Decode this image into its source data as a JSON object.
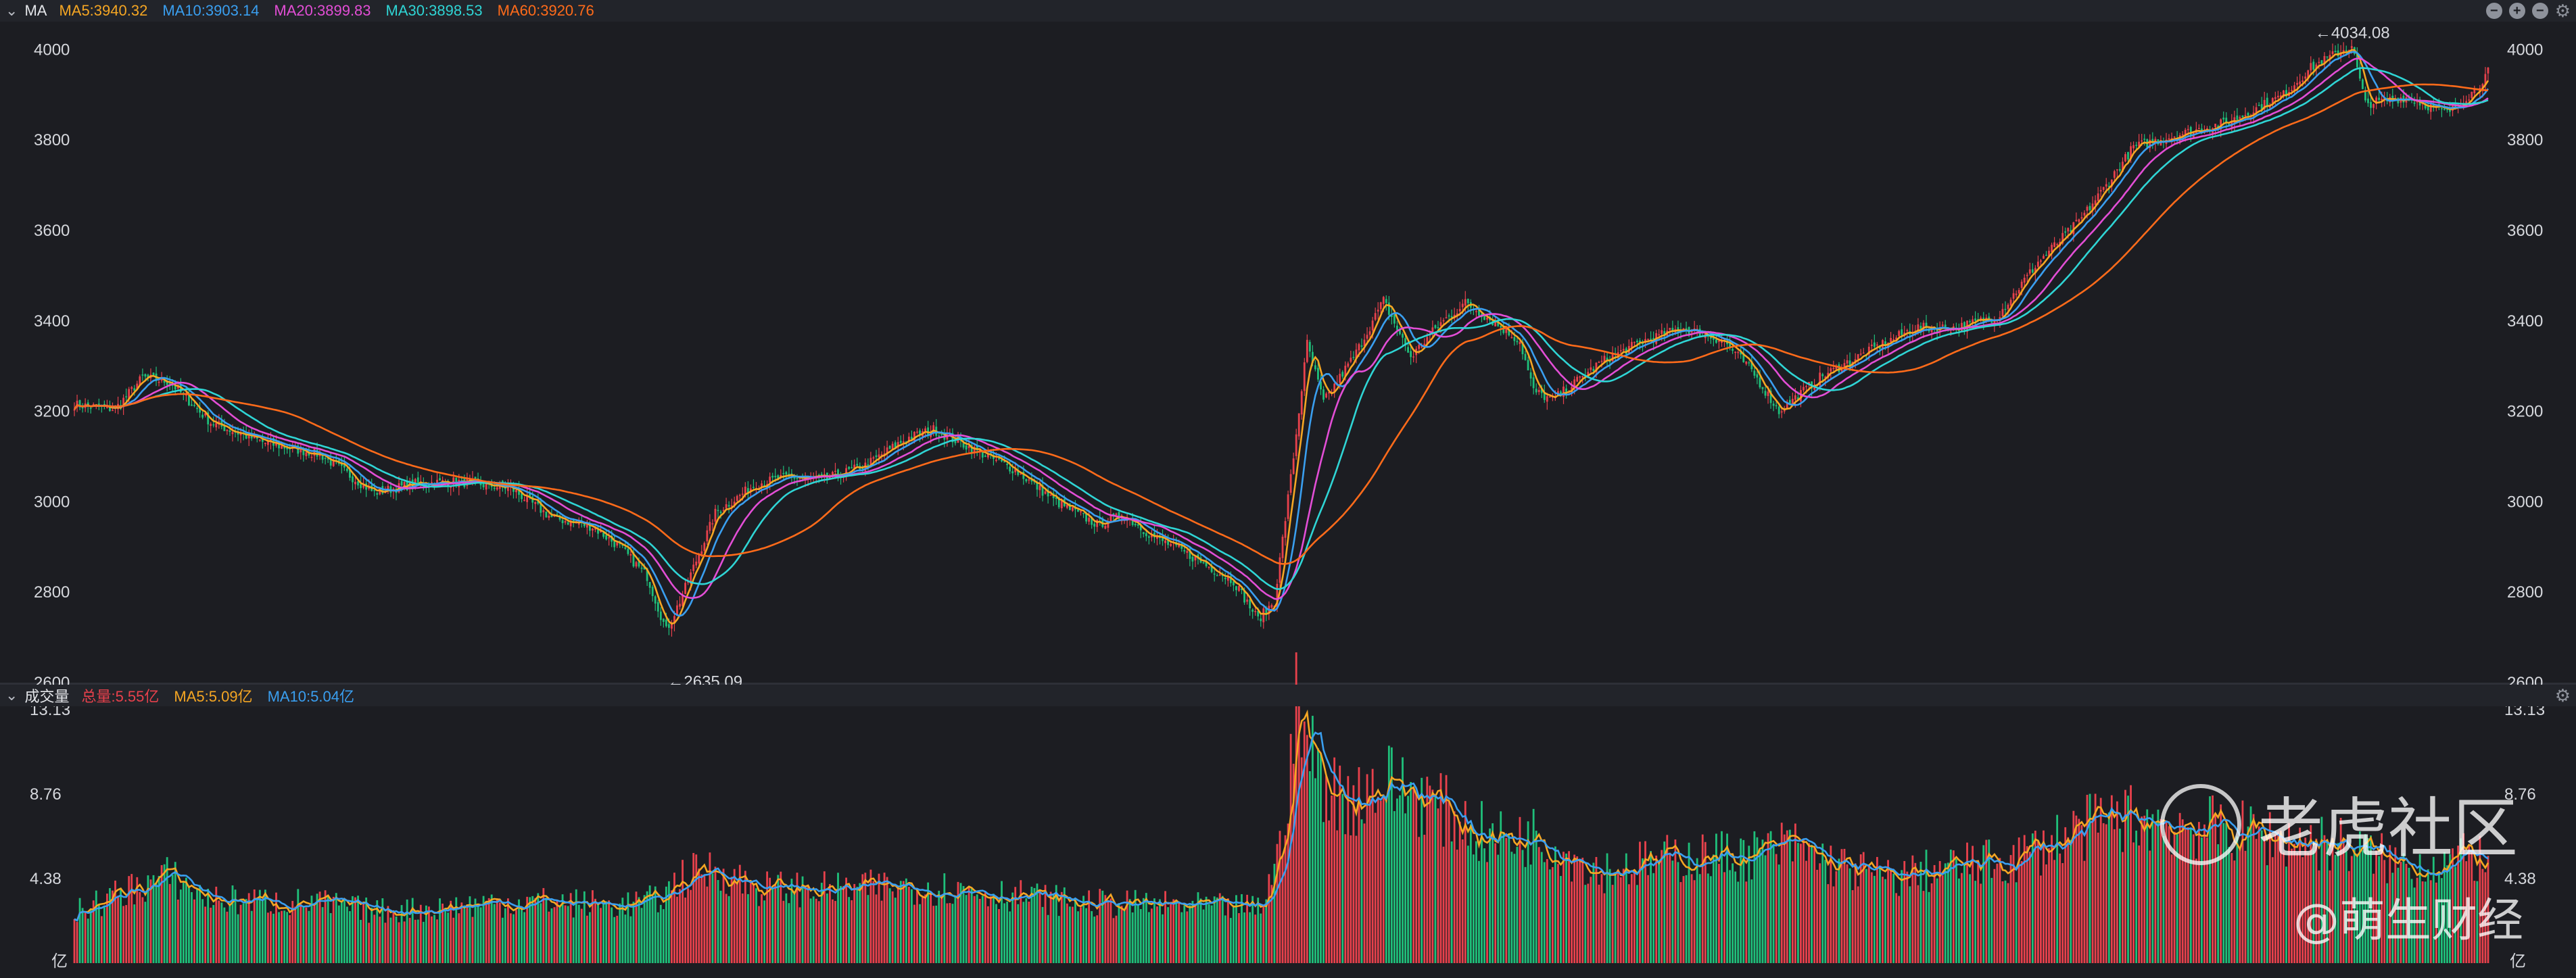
{
  "colors": {
    "up": "#e8414c",
    "down": "#1fbf7a",
    "ma5": "#f5a623",
    "ma10": "#3a9ff0",
    "ma20": "#e34ed6",
    "ma30": "#2fd5d5",
    "ma60": "#ff6b1a",
    "total": "#e8414c",
    "text": "#d6d8dd",
    "grid": "#2a2c33"
  },
  "price_panel": {
    "title": "MA",
    "legend": [
      {
        "label": "MA5:3940.32",
        "color": "#f5a623"
      },
      {
        "label": "MA10:3903.14",
        "color": "#3a9ff0"
      },
      {
        "label": "MA20:3899.83",
        "color": "#e34ed6"
      },
      {
        "label": "MA30:3898.53",
        "color": "#2fd5d5"
      },
      {
        "label": "MA60:3920.76",
        "color": "#ff6b1a"
      }
    ],
    "y_ticks": [
      "4000",
      "3800",
      "3600",
      "3400",
      "3200",
      "3000",
      "2800",
      "2600"
    ],
    "annotations": {
      "high": "←4034.08",
      "low": "←2635.09"
    }
  },
  "volume_panel": {
    "title": "成交量",
    "legend": [
      {
        "label": "总量:5.55亿",
        "color": "#e8414c"
      },
      {
        "label": "MA5:5.09亿",
        "color": "#f5a623"
      },
      {
        "label": "MA10:5.04亿",
        "color": "#3a9ff0"
      }
    ],
    "y_ticks": [
      "13.13",
      "8.76",
      "4.38"
    ],
    "unit": "亿"
  },
  "watermark": {
    "brand": "老虎社区",
    "author": "@萌生财经"
  },
  "chart_data": [
    {
      "type": "candlestick",
      "title": "MA",
      "ylim": [
        2600,
        4050
      ],
      "y_ticks": [
        2600,
        2800,
        3000,
        3200,
        3400,
        3600,
        3800,
        4000
      ],
      "high": 4034.08,
      "low": 2635.09,
      "series": [
        {
          "name": "MA5",
          "last": 3940.32
        },
        {
          "name": "MA10",
          "last": 3903.14
        },
        {
          "name": "MA20",
          "last": 3899.83
        },
        {
          "name": "MA30",
          "last": 3898.53
        },
        {
          "name": "MA60",
          "last": 3920.76
        }
      ],
      "close_path": [
        [
          0,
          3215
        ],
        [
          15,
          3205
        ],
        [
          25,
          3275
        ],
        [
          35,
          3265
        ],
        [
          50,
          3175
        ],
        [
          70,
          3130
        ],
        [
          90,
          3105
        ],
        [
          110,
          3020
        ],
        [
          125,
          3040
        ],
        [
          140,
          3045
        ],
        [
          160,
          3030
        ],
        [
          175,
          2965
        ],
        [
          190,
          2945
        ],
        [
          200,
          2900
        ],
        [
          210,
          2835
        ],
        [
          217,
          2715
        ],
        [
          222,
          2780
        ],
        [
          235,
          2975
        ],
        [
          250,
          3040
        ],
        [
          262,
          3055
        ],
        [
          275,
          3050
        ],
        [
          290,
          3080
        ],
        [
          305,
          3140
        ],
        [
          315,
          3160
        ],
        [
          330,
          3115
        ],
        [
          345,
          3070
        ],
        [
          360,
          3000
        ],
        [
          375,
          2950
        ],
        [
          385,
          2970
        ],
        [
          395,
          2925
        ],
        [
          405,
          2895
        ],
        [
          415,
          2860
        ],
        [
          425,
          2825
        ],
        [
          434,
          2740
        ],
        [
          440,
          2780
        ],
        [
          447,
          3100
        ],
        [
          452,
          3350
        ],
        [
          458,
          3220
        ],
        [
          470,
          3330
        ],
        [
          480,
          3445
        ],
        [
          490,
          3320
        ],
        [
          500,
          3390
        ],
        [
          510,
          3440
        ],
        [
          520,
          3400
        ],
        [
          530,
          3355
        ],
        [
          535,
          3245
        ],
        [
          542,
          3225
        ],
        [
          560,
          3310
        ],
        [
          575,
          3355
        ],
        [
          590,
          3385
        ],
        [
          605,
          3355
        ],
        [
          615,
          3290
        ],
        [
          625,
          3200
        ],
        [
          640,
          3275
        ],
        [
          660,
          3340
        ],
        [
          675,
          3385
        ],
        [
          690,
          3385
        ],
        [
          705,
          3410
        ],
        [
          720,
          3530
        ],
        [
          735,
          3620
        ],
        [
          745,
          3700
        ],
        [
          755,
          3785
        ],
        [
          770,
          3810
        ],
        [
          790,
          3840
        ],
        [
          810,
          3900
        ],
        [
          820,
          3960
        ],
        [
          835,
          4010
        ],
        [
          840,
          3880
        ],
        [
          855,
          3895
        ],
        [
          870,
          3860
        ],
        [
          880,
          3910
        ],
        [
          885,
          3950
        ]
      ]
    },
    {
      "type": "bar",
      "title": "成交量",
      "unit": "亿",
      "ylim": [
        0,
        13.13
      ],
      "y_ticks": [
        4.38,
        8.76,
        13.13
      ],
      "series": [
        {
          "name": "总量",
          "last": 5.55
        },
        {
          "name": "MA5",
          "last": 5.09
        },
        {
          "name": "MA10",
          "last": 5.04
        }
      ],
      "volume_path": [
        [
          0,
          2.6
        ],
        [
          20,
          3.8
        ],
        [
          35,
          4.5
        ],
        [
          50,
          3.3
        ],
        [
          70,
          3.2
        ],
        [
          90,
          3.1
        ],
        [
          110,
          2.7
        ],
        [
          130,
          2.8
        ],
        [
          150,
          3.1
        ],
        [
          170,
          3.2
        ],
        [
          200,
          3.0
        ],
        [
          215,
          3.3
        ],
        [
          222,
          4.4
        ],
        [
          235,
          4.9
        ],
        [
          250,
          3.9
        ],
        [
          280,
          3.8
        ],
        [
          310,
          4.0
        ],
        [
          340,
          3.6
        ],
        [
          370,
          3.1
        ],
        [
          400,
          3.0
        ],
        [
          420,
          2.9
        ],
        [
          435,
          2.9
        ],
        [
          442,
          5.8
        ],
        [
          448,
          13.0
        ],
        [
          455,
          10.2
        ],
        [
          465,
          8.4
        ],
        [
          480,
          9.4
        ],
        [
          495,
          8.6
        ],
        [
          505,
          7.6
        ],
        [
          520,
          6.4
        ],
        [
          535,
          6.6
        ],
        [
          560,
          4.8
        ],
        [
          590,
          5.5
        ],
        [
          615,
          5.6
        ],
        [
          630,
          6.1
        ],
        [
          645,
          5.1
        ],
        [
          665,
          4.4
        ],
        [
          690,
          5.0
        ],
        [
          710,
          5.3
        ],
        [
          730,
          6.6
        ],
        [
          750,
          7.6
        ],
        [
          770,
          7.2
        ],
        [
          790,
          6.9
        ],
        [
          810,
          6.4
        ],
        [
          830,
          6.2
        ],
        [
          855,
          5.0
        ],
        [
          885,
          5.55
        ]
      ]
    }
  ]
}
